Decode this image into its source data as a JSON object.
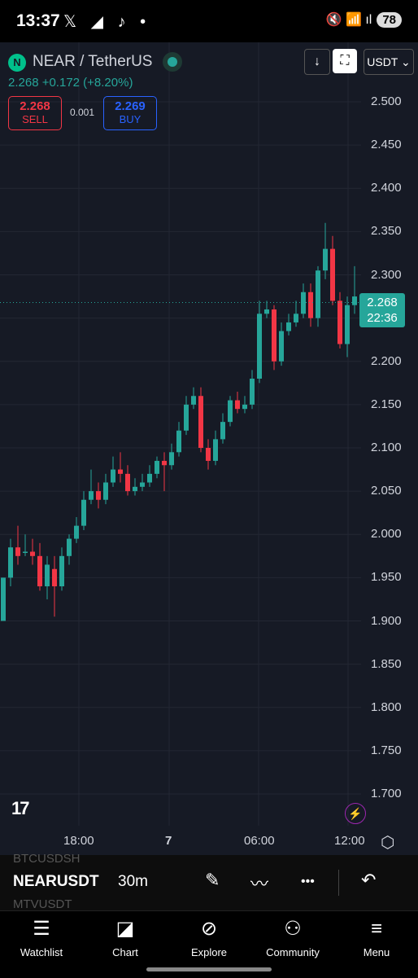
{
  "status_bar": {
    "time": "13:37",
    "app_icons": "𝕏 ◢ ♪ •",
    "signal_icons": "🔇 📶 ıl",
    "battery": "78"
  },
  "header": {
    "logo_letter": "N",
    "title": "NEAR / TetherUS",
    "price_line": "2.268 +0.172 (+8.20%)",
    "sell_price": "2.268",
    "sell_label": "SELL",
    "spread": "0.001",
    "buy_price": "2.269",
    "buy_label": "BUY",
    "download_icon": "↓",
    "fullscreen_icon": "⛶",
    "currency": "USDT ⌄"
  },
  "chart_data": {
    "type": "candlestick",
    "symbol": "NEARUSDT",
    "interval": "30m",
    "y_ticks": [
      "2.500",
      "2.450",
      "2.400",
      "2.350",
      "2.300",
      "2.250",
      "2.200",
      "2.150",
      "2.100",
      "2.050",
      "2.000",
      "1.950",
      "1.900",
      "1.850",
      "1.800",
      "1.750",
      "1.700"
    ],
    "x_ticks": [
      "18:00",
      "7",
      "06:00",
      "12:00"
    ],
    "current_price": "2.268",
    "countdown": "22:36",
    "candles": [
      [
        1.9,
        1.95,
        1.95,
        1.9
      ],
      [
        1.95,
        1.985,
        1.995,
        1.94
      ],
      [
        1.985,
        1.975,
        2.01,
        1.965
      ],
      [
        1.98,
        1.98,
        2.0,
        1.975
      ],
      [
        1.98,
        1.975,
        1.995,
        1.965
      ],
      [
        1.975,
        1.94,
        1.99,
        1.935
      ],
      [
        1.94,
        1.965,
        1.975,
        1.925
      ],
      [
        1.96,
        1.94,
        1.975,
        1.905
      ],
      [
        1.94,
        1.975,
        1.985,
        1.935
      ],
      [
        1.975,
        1.995,
        2.0,
        1.965
      ],
      [
        1.995,
        2.01,
        2.02,
        1.99
      ],
      [
        2.01,
        2.04,
        2.05,
        2.005
      ],
      [
        2.04,
        2.05,
        2.075,
        2.035
      ],
      [
        2.05,
        2.04,
        2.06,
        2.03
      ],
      [
        2.04,
        2.06,
        2.07,
        2.035
      ],
      [
        2.06,
        2.075,
        2.09,
        2.055
      ],
      [
        2.075,
        2.07,
        2.095,
        2.06
      ],
      [
        2.07,
        2.05,
        2.08,
        2.045
      ],
      [
        2.05,
        2.055,
        2.065,
        2.045
      ],
      [
        2.055,
        2.06,
        2.07,
        2.05
      ],
      [
        2.06,
        2.07,
        2.08,
        2.055
      ],
      [
        2.07,
        2.085,
        2.09,
        2.065
      ],
      [
        2.085,
        2.08,
        2.095,
        2.05
      ],
      [
        2.08,
        2.095,
        2.105,
        2.075
      ],
      [
        2.095,
        2.12,
        2.13,
        2.09
      ],
      [
        2.12,
        2.15,
        2.16,
        2.115
      ],
      [
        2.15,
        2.16,
        2.17,
        2.145
      ],
      [
        2.16,
        2.1,
        2.17,
        2.095
      ],
      [
        2.1,
        2.085,
        2.11,
        2.075
      ],
      [
        2.085,
        2.11,
        2.12,
        2.08
      ],
      [
        2.11,
        2.13,
        2.14,
        2.105
      ],
      [
        2.13,
        2.155,
        2.16,
        2.125
      ],
      [
        2.155,
        2.145,
        2.165,
        2.14
      ],
      [
        2.145,
        2.15,
        2.16,
        2.14
      ],
      [
        2.15,
        2.18,
        2.19,
        2.145
      ],
      [
        2.18,
        2.255,
        2.27,
        2.175
      ],
      [
        2.255,
        2.26,
        2.27,
        2.25
      ],
      [
        2.26,
        2.2,
        2.265,
        2.19
      ],
      [
        2.2,
        2.235,
        2.245,
        2.195
      ],
      [
        2.235,
        2.245,
        2.255,
        2.23
      ],
      [
        2.245,
        2.255,
        2.27,
        2.24
      ],
      [
        2.255,
        2.28,
        2.29,
        2.25
      ],
      [
        2.28,
        2.25,
        2.29,
        2.24
      ],
      [
        2.25,
        2.305,
        2.31,
        2.24
      ],
      [
        2.305,
        2.33,
        2.36,
        2.295
      ],
      [
        2.33,
        2.27,
        2.345,
        2.265
      ],
      [
        2.27,
        2.22,
        2.28,
        2.215
      ],
      [
        2.22,
        2.265,
        2.275,
        2.205
      ],
      [
        2.265,
        2.275,
        2.31,
        2.255
      ],
      [
        2.27,
        2.268,
        2.275,
        2.26
      ]
    ]
  },
  "toolbar": {
    "symbol": "NEARUSDT",
    "interval": "30m",
    "ghost_prev": "BTCUSDSH",
    "ghost_next": "MTVUSDT",
    "draw_icon": "✎",
    "indicator_icon": "〰",
    "more_icon": "•••",
    "undo_icon": "↶"
  },
  "nav": {
    "items": [
      {
        "label": "Watchlist",
        "icon": "☰"
      },
      {
        "label": "Chart",
        "icon": "◪"
      },
      {
        "label": "Explore",
        "icon": "⊘"
      },
      {
        "label": "Community",
        "icon": "⚇"
      },
      {
        "label": "Menu",
        "icon": "≡"
      }
    ]
  },
  "brand": {
    "tv_logo": "17",
    "bolt": "⚡",
    "gear": "⬡"
  },
  "colors": {
    "up": "#26a69a",
    "down": "#f23645",
    "bg": "#161a25"
  }
}
